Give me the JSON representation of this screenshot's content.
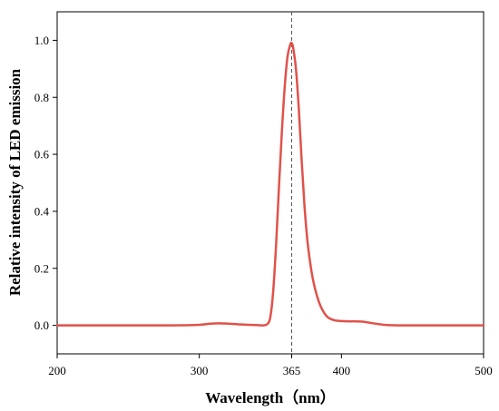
{
  "chart_data": {
    "type": "line",
    "xlabel": "Wavelength（nm）",
    "ylabel": "Relative intensity of LED emission",
    "xlim": [
      200,
      500
    ],
    "ylim": [
      -0.1,
      1.1
    ],
    "x_ticks": [
      200,
      300,
      365,
      400,
      500
    ],
    "y_ticks": [
      0.0,
      0.2,
      0.4,
      0.6,
      0.8,
      1.0
    ],
    "y_tick_labels": [
      "0.0",
      "0.2",
      "0.4",
      "0.6",
      "0.8",
      "1.0"
    ],
    "grid": false,
    "reference_line": {
      "x": 365,
      "style": "dashed",
      "color": "#555555"
    },
    "series": [
      {
        "color": "#e0524a",
        "x": [
          200,
          280,
          300,
          308,
          314,
          320,
          330,
          340,
          345,
          348,
          350,
          352,
          354,
          356,
          358,
          360,
          362,
          364,
          365,
          366,
          368,
          370,
          372,
          374,
          376,
          378,
          380,
          383,
          386,
          390,
          395,
          400,
          405,
          410,
          415,
          420,
          430,
          440,
          460,
          500
        ],
        "y": [
          0.0,
          0.0,
          0.002,
          0.006,
          0.007,
          0.006,
          0.003,
          0.001,
          0.0,
          0.005,
          0.03,
          0.12,
          0.28,
          0.48,
          0.67,
          0.83,
          0.94,
          0.985,
          0.99,
          0.975,
          0.9,
          0.76,
          0.58,
          0.42,
          0.3,
          0.22,
          0.16,
          0.1,
          0.06,
          0.03,
          0.018,
          0.015,
          0.014,
          0.014,
          0.013,
          0.009,
          0.002,
          0.0,
          0.0,
          0.0
        ]
      }
    ]
  }
}
